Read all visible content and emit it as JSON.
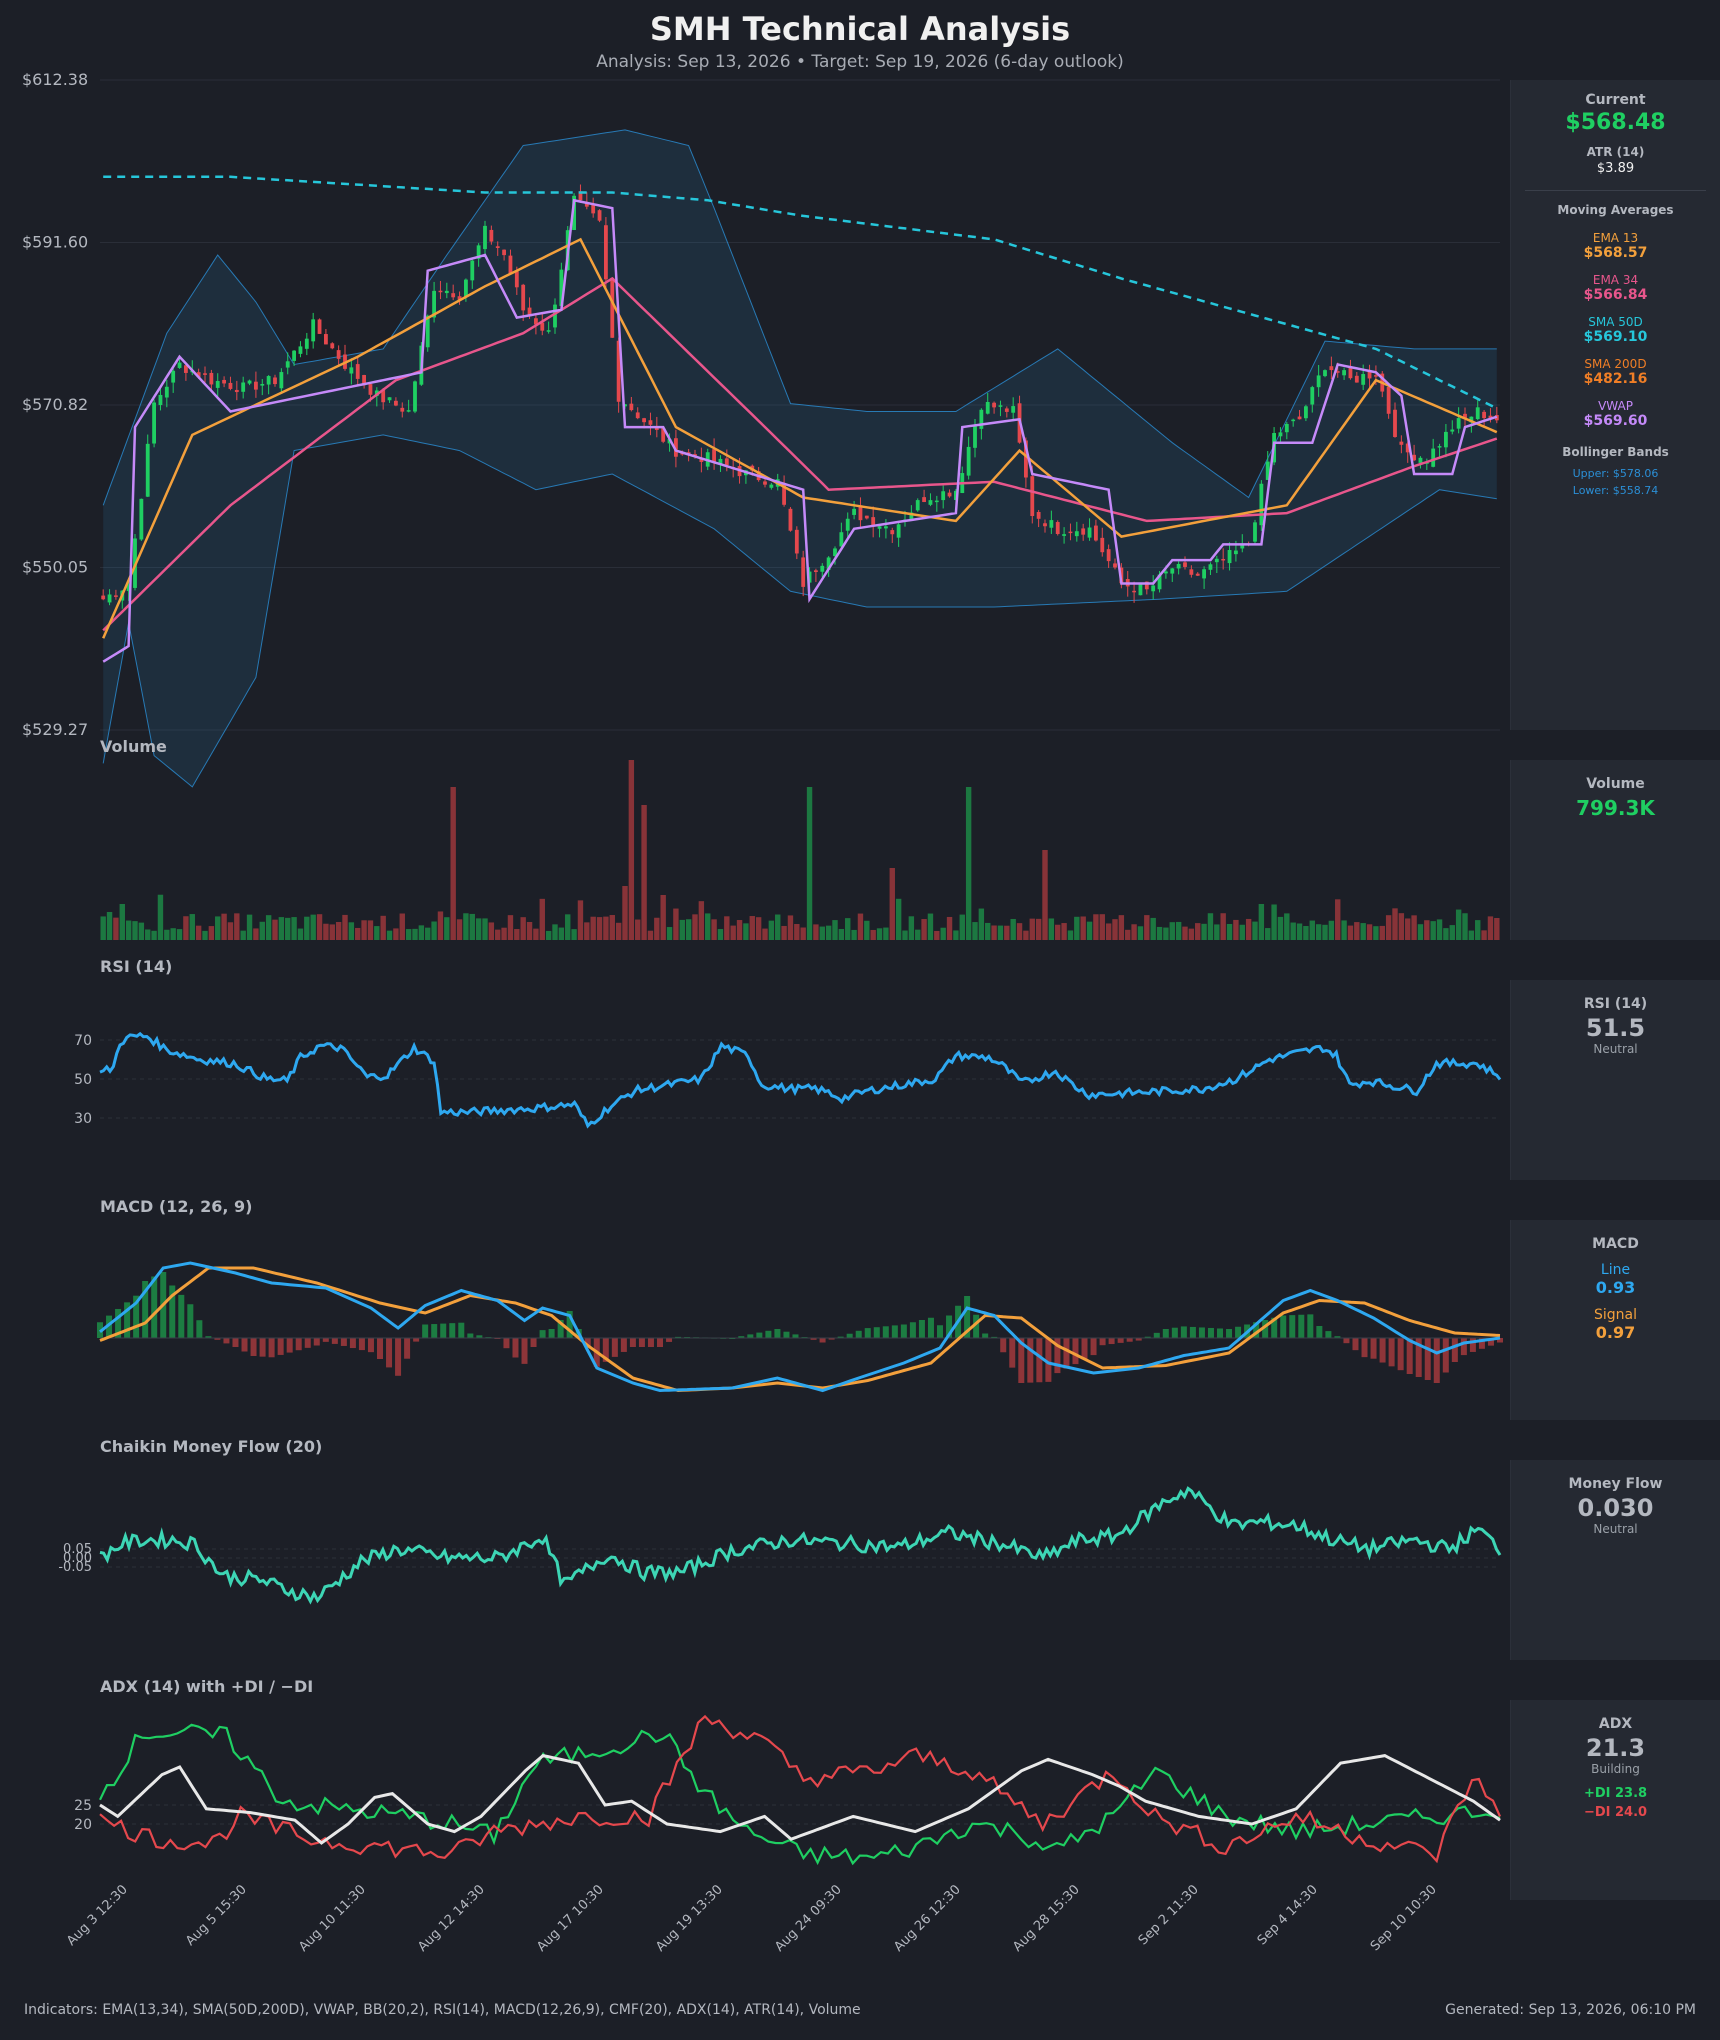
{
  "header": {
    "title": "SMH Technical Analysis",
    "subtitle": "Analysis: Sep 13, 2026  •  Target: Sep 19, 2026  (6-day outlook)"
  },
  "panels": {
    "volume": "Volume",
    "rsi": "RSI (14)",
    "macd": "MACD (12, 26, 9)",
    "cmf": "Chaikin Money Flow (20)",
    "adx": "ADX (14) with +DI / −DI"
  },
  "sidebar": {
    "current": {
      "label": "Current",
      "value": "$568.48"
    },
    "atr": {
      "label": "ATR (14)",
      "value": "$3.89"
    },
    "ma_header": "Moving Averages",
    "ema13": {
      "label": "EMA 13",
      "value": "$568.57"
    },
    "ema34": {
      "label": "EMA 34",
      "value": "$566.84"
    },
    "sma50": {
      "label": "SMA 50D",
      "value": "$569.10"
    },
    "sma200": {
      "label": "SMA 200D",
      "value": "$482.16"
    },
    "vwap": {
      "label": "VWAP",
      "value": "$569.60"
    },
    "bb": {
      "label": "Bollinger Bands",
      "upper": "Upper: $578.06",
      "lower": "Lower: $558.74"
    },
    "volume": {
      "label": "Volume",
      "value": "799.3K"
    },
    "rsi": {
      "label": "RSI (14)",
      "value": "51.5",
      "status": "Neutral"
    },
    "macd": {
      "label": "MACD",
      "line_label": "Line",
      "line_value": "0.93",
      "signal_label": "Signal",
      "signal_value": "0.97"
    },
    "mf": {
      "label": "Money Flow",
      "value": "0.030",
      "status": "Neutral"
    },
    "adx": {
      "label": "ADX",
      "value": "21.3",
      "status": "Building",
      "plus": "+DI 23.8",
      "minus": "−DI 24.0"
    }
  },
  "footer": {
    "left": "Indicators: EMA(13,34), SMA(50D,200D), VWAP, BB(20,2), RSI(14), MACD(12,26,9), CMF(20), ADX(14), ATR(14), Volume",
    "right": "Generated: Sep 13, 2026, 06:10 PM"
  },
  "colors": {
    "background": "#1c1f27",
    "up": "#1fcf62",
    "down": "#e5484d",
    "ema13": "#f3a03c",
    "ema34": "#e8568c",
    "sma50": "#26c6da",
    "sma200": "#f07e26",
    "vwap": "#c58af9",
    "bb": "#2b8fd6",
    "rsi": "#2ea8f0",
    "macd_line": "#2ea8f0",
    "macd_signal": "#f3a03c",
    "cmf": "#3dd6b5",
    "adx": "#e8e8e8",
    "plus_di": "#1fcf62",
    "minus_di": "#e5484d"
  },
  "chart_data": [
    {
      "type": "candlestick",
      "panel": "price",
      "ylim": [
        529.27,
        612.38
      ],
      "y_ticks": [
        "$612.38",
        "$591.60",
        "$570.82",
        "$550.05",
        "$529.27"
      ],
      "x_ticks": [
        "Aug 3 12:30",
        "Aug 5 15:30",
        "Aug 10 11:30",
        "Aug 12 14:30",
        "Aug 17 10:30",
        "Aug 19 13:30",
        "Aug 24 09:30",
        "Aug 26 12:30",
        "Aug 28 15:30",
        "Sep 2 11:30",
        "Sep 4 14:30",
        "Sep 10 10:30"
      ],
      "close_anchors": [
        [
          0,
          546
        ],
        [
          4,
          548
        ],
        [
          8,
          571
        ],
        [
          12,
          576
        ],
        [
          17,
          574
        ],
        [
          22,
          573
        ],
        [
          27,
          574
        ],
        [
          33,
          581
        ],
        [
          38,
          576
        ],
        [
          43,
          572
        ],
        [
          48,
          570
        ],
        [
          52,
          586
        ],
        [
          56,
          585
        ],
        [
          60,
          593
        ],
        [
          63,
          590
        ],
        [
          66,
          583
        ],
        [
          70,
          580
        ],
        [
          74,
          597
        ],
        [
          78,
          594
        ],
        [
          81,
          572
        ],
        [
          86,
          568
        ],
        [
          90,
          565
        ],
        [
          95,
          564
        ],
        [
          101,
          562
        ],
        [
          106,
          561
        ],
        [
          110,
          548
        ],
        [
          114,
          552
        ],
        [
          118,
          557
        ],
        [
          124,
          555
        ],
        [
          129,
          559
        ],
        [
          134,
          560
        ],
        [
          138,
          571
        ],
        [
          143,
          570
        ],
        [
          146,
          557
        ],
        [
          150,
          555
        ],
        [
          155,
          555
        ],
        [
          160,
          548
        ],
        [
          164,
          547
        ],
        [
          168,
          550
        ],
        [
          172,
          549
        ],
        [
          176,
          551
        ],
        [
          180,
          553
        ],
        [
          184,
          567
        ],
        [
          188,
          569
        ],
        [
          192,
          576
        ],
        [
          196,
          574
        ],
        [
          200,
          575
        ],
        [
          204,
          565
        ],
        [
          208,
          564
        ],
        [
          212,
          568
        ],
        [
          216,
          570
        ],
        [
          219,
          569
        ]
      ],
      "series_samples": {
        "ema13": [
          [
            0,
            541
          ],
          [
            14,
            567
          ],
          [
            40,
            577
          ],
          [
            60,
            586
          ],
          [
            75,
            592
          ],
          [
            90,
            568
          ],
          [
            110,
            559
          ],
          [
            134,
            556
          ],
          [
            144,
            565
          ],
          [
            160,
            554
          ],
          [
            186,
            558
          ],
          [
            200,
            574
          ],
          [
            220,
            567
          ]
        ],
        "ema34": [
          [
            0,
            542
          ],
          [
            20,
            558
          ],
          [
            46,
            574
          ],
          [
            66,
            580
          ],
          [
            80,
            587
          ],
          [
            104,
            568
          ],
          [
            114,
            560
          ],
          [
            140,
            561
          ],
          [
            164,
            556
          ],
          [
            186,
            557
          ],
          [
            206,
            563
          ],
          [
            220,
            566.8
          ]
        ],
        "vwap": [
          [
            0,
            538
          ],
          [
            4,
            540
          ],
          [
            5,
            568
          ],
          [
            12,
            577
          ],
          [
            20,
            570
          ],
          [
            50,
            575
          ],
          [
            51,
            588
          ],
          [
            60,
            590
          ],
          [
            65,
            582
          ],
          [
            72,
            583
          ],
          [
            74,
            597
          ],
          [
            80,
            596
          ],
          [
            82,
            568
          ],
          [
            88,
            568
          ],
          [
            90,
            565
          ],
          [
            110,
            560
          ],
          [
            111,
            546
          ],
          [
            118,
            555
          ],
          [
            134,
            557
          ],
          [
            135,
            568
          ],
          [
            144,
            569
          ],
          [
            146,
            562
          ],
          [
            158,
            560
          ],
          [
            160,
            548
          ],
          [
            165,
            548
          ],
          [
            168,
            551
          ],
          [
            174,
            551
          ],
          [
            176,
            553
          ],
          [
            182,
            553
          ],
          [
            184,
            566
          ],
          [
            190,
            566
          ],
          [
            194,
            576
          ],
          [
            200,
            575
          ],
          [
            204,
            572
          ],
          [
            206,
            562
          ],
          [
            212,
            562
          ],
          [
            214,
            568
          ],
          [
            220,
            569.6
          ]
        ],
        "sma50": [
          [
            0,
            600
          ],
          [
            20,
            600
          ],
          [
            60,
            598
          ],
          [
            80,
            598
          ],
          [
            95,
            597
          ],
          [
            110,
            595
          ],
          [
            140,
            592
          ],
          [
            160,
            587
          ],
          [
            200,
            578
          ],
          [
            220,
            570
          ]
        ],
        "bb_upper": [
          [
            0,
            558
          ],
          [
            10,
            580
          ],
          [
            18,
            590
          ],
          [
            24,
            584
          ],
          [
            30,
            576
          ],
          [
            44,
            578
          ],
          [
            54,
            590
          ],
          [
            66,
            604
          ],
          [
            82,
            606
          ],
          [
            92,
            604
          ],
          [
            96,
            596
          ],
          [
            108,
            571
          ],
          [
            120,
            570
          ],
          [
            134,
            570
          ],
          [
            150,
            578
          ],
          [
            168,
            566
          ],
          [
            180,
            559
          ],
          [
            192,
            579
          ],
          [
            206,
            578
          ],
          [
            220,
            578
          ]
        ],
        "bb_lower": [
          [
            0,
            525
          ],
          [
            4,
            543
          ],
          [
            8,
            526
          ],
          [
            14,
            522
          ],
          [
            24,
            536
          ],
          [
            30,
            565
          ],
          [
            44,
            567
          ],
          [
            56,
            565
          ],
          [
            68,
            560
          ],
          [
            80,
            562
          ],
          [
            96,
            555
          ],
          [
            108,
            547
          ],
          [
            120,
            545
          ],
          [
            140,
            545
          ],
          [
            166,
            546
          ],
          [
            186,
            547
          ],
          [
            210,
            560
          ],
          [
            220,
            558.7
          ]
        ]
      }
    },
    {
      "type": "bar",
      "panel": "volume",
      "series_name": "Volume",
      "last_value": "799.3K"
    },
    {
      "type": "line",
      "panel": "rsi",
      "y_ticks": [
        70,
        50,
        30
      ],
      "last_value": 51.5,
      "samples": [
        [
          0,
          53
        ],
        [
          4,
          56
        ],
        [
          6,
          69
        ],
        [
          10,
          72
        ],
        [
          14,
          72
        ],
        [
          20,
          65
        ],
        [
          30,
          60
        ],
        [
          40,
          58
        ],
        [
          50,
          50
        ],
        [
          56,
          49
        ],
        [
          60,
          61
        ],
        [
          66,
          67
        ],
        [
          72,
          66
        ],
        [
          80,
          51
        ],
        [
          86,
          52
        ],
        [
          94,
          66
        ],
        [
          100,
          59
        ],
        [
          102,
          33
        ],
        [
          110,
          33
        ],
        [
          120,
          34
        ],
        [
          130,
          35
        ],
        [
          142,
          37
        ],
        [
          146,
          26
        ],
        [
          152,
          35
        ],
        [
          160,
          44
        ],
        [
          170,
          47
        ],
        [
          180,
          50
        ],
        [
          186,
          67
        ],
        [
          194,
          62
        ],
        [
          198,
          47
        ],
        [
          206,
          45
        ],
        [
          214,
          45
        ],
        [
          218,
          43
        ],
        [
          222,
          40
        ],
        [
          230,
          44
        ],
        [
          240,
          47
        ],
        [
          250,
          50
        ],
        [
          256,
          62
        ],
        [
          266,
          61
        ],
        [
          270,
          57
        ],
        [
          276,
          48
        ],
        [
          286,
          54
        ],
        [
          292,
          46
        ],
        [
          296,
          42
        ],
        [
          310,
          43
        ],
        [
          320,
          44
        ],
        [
          330,
          45
        ],
        [
          340,
          50
        ],
        [
          350,
          60
        ],
        [
          360,
          64
        ],
        [
          366,
          66
        ],
        [
          370,
          62
        ],
        [
          374,
          47
        ],
        [
          380,
          49
        ],
        [
          394,
          44
        ],
        [
          400,
          58
        ],
        [
          412,
          58
        ],
        [
          419,
          51.5
        ]
      ]
    },
    {
      "type": "line",
      "panel": "macd",
      "last_line": 0.93,
      "last_signal": 0.97
    },
    {
      "type": "line",
      "panel": "cmf",
      "y_ticks": [
        0.05,
        0.0,
        -0.05
      ],
      "last_value": 0.03
    },
    {
      "type": "line",
      "panel": "adx",
      "y_ticks": [
        25,
        20
      ],
      "adx_last": 21.3,
      "plus_di_last": 23.8,
      "minus_di_last": 24.0
    }
  ]
}
